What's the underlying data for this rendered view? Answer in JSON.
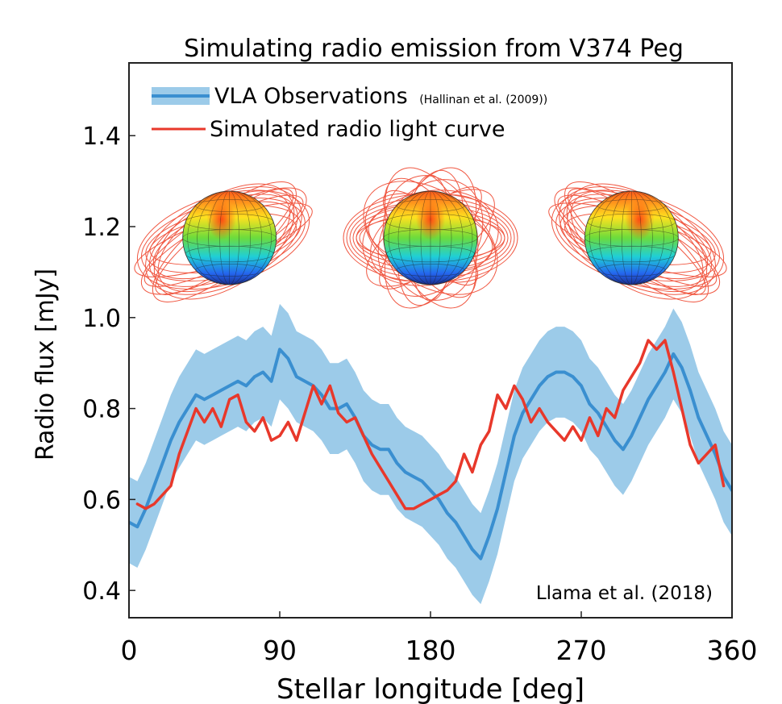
{
  "chart_data": {
    "type": "line",
    "title": "Simulating radio emission from V374 Peg",
    "xlabel": "Stellar longitude [deg]",
    "ylabel": "Radio flux [mJy]",
    "xlim": [
      0,
      360
    ],
    "ylim": [
      0.34,
      1.56
    ],
    "xticks": [
      0,
      90,
      180,
      270,
      360
    ],
    "yticks": [
      0.4,
      0.6,
      0.8,
      1.0,
      1.2,
      1.4
    ],
    "grid": false,
    "legend_position": "top-left",
    "annotation": "Llama et al. (2018)",
    "series": [
      {
        "name": "VLA Observations",
        "name_suffix": "(Hallinan et al. (2009))",
        "kind": "line-with-band",
        "color": "#3a8fd0",
        "band_color": "#9ccbe9",
        "x": [
          0,
          5,
          10,
          15,
          20,
          25,
          30,
          35,
          40,
          45,
          50,
          55,
          60,
          65,
          70,
          75,
          80,
          85,
          90,
          95,
          100,
          105,
          110,
          115,
          120,
          125,
          130,
          135,
          140,
          145,
          150,
          155,
          160,
          165,
          170,
          175,
          180,
          185,
          190,
          195,
          200,
          205,
          210,
          215,
          220,
          225,
          230,
          235,
          240,
          245,
          250,
          255,
          260,
          265,
          270,
          275,
          280,
          285,
          290,
          295,
          300,
          305,
          310,
          315,
          320,
          325,
          330,
          335,
          340,
          345,
          350,
          355,
          360
        ],
        "y": [
          0.55,
          0.54,
          0.58,
          0.63,
          0.68,
          0.73,
          0.77,
          0.8,
          0.83,
          0.82,
          0.83,
          0.84,
          0.85,
          0.86,
          0.85,
          0.87,
          0.88,
          0.86,
          0.93,
          0.91,
          0.87,
          0.86,
          0.85,
          0.83,
          0.8,
          0.8,
          0.81,
          0.78,
          0.74,
          0.72,
          0.71,
          0.71,
          0.68,
          0.66,
          0.65,
          0.64,
          0.62,
          0.6,
          0.57,
          0.55,
          0.52,
          0.49,
          0.47,
          0.52,
          0.58,
          0.66,
          0.74,
          0.79,
          0.82,
          0.85,
          0.87,
          0.88,
          0.88,
          0.87,
          0.85,
          0.81,
          0.79,
          0.76,
          0.73,
          0.71,
          0.74,
          0.78,
          0.82,
          0.85,
          0.88,
          0.92,
          0.89,
          0.84,
          0.78,
          0.74,
          0.7,
          0.65,
          0.62
        ],
        "y_lower": [
          0.46,
          0.45,
          0.49,
          0.54,
          0.59,
          0.64,
          0.67,
          0.7,
          0.73,
          0.72,
          0.73,
          0.74,
          0.75,
          0.76,
          0.75,
          0.77,
          0.78,
          0.76,
          0.82,
          0.8,
          0.77,
          0.76,
          0.75,
          0.73,
          0.7,
          0.7,
          0.71,
          0.68,
          0.64,
          0.62,
          0.61,
          0.61,
          0.58,
          0.56,
          0.55,
          0.54,
          0.52,
          0.5,
          0.47,
          0.45,
          0.42,
          0.39,
          0.37,
          0.42,
          0.48,
          0.56,
          0.64,
          0.69,
          0.72,
          0.75,
          0.77,
          0.78,
          0.78,
          0.77,
          0.75,
          0.71,
          0.69,
          0.66,
          0.63,
          0.61,
          0.64,
          0.68,
          0.72,
          0.75,
          0.78,
          0.82,
          0.79,
          0.74,
          0.68,
          0.64,
          0.6,
          0.55,
          0.52
        ],
        "y_upper": [
          0.65,
          0.64,
          0.68,
          0.73,
          0.78,
          0.83,
          0.87,
          0.9,
          0.93,
          0.92,
          0.93,
          0.94,
          0.95,
          0.96,
          0.95,
          0.97,
          0.98,
          0.96,
          1.03,
          1.01,
          0.97,
          0.96,
          0.95,
          0.93,
          0.9,
          0.9,
          0.91,
          0.88,
          0.84,
          0.82,
          0.81,
          0.81,
          0.78,
          0.76,
          0.75,
          0.74,
          0.72,
          0.7,
          0.67,
          0.65,
          0.62,
          0.59,
          0.57,
          0.62,
          0.68,
          0.76,
          0.84,
          0.89,
          0.92,
          0.95,
          0.97,
          0.98,
          0.98,
          0.97,
          0.95,
          0.91,
          0.89,
          0.86,
          0.83,
          0.81,
          0.84,
          0.88,
          0.92,
          0.95,
          0.98,
          1.02,
          0.99,
          0.94,
          0.88,
          0.84,
          0.8,
          0.75,
          0.72
        ]
      },
      {
        "name": "Simulated radio light curve",
        "kind": "line",
        "color": "#e8382b",
        "x": [
          5,
          10,
          15,
          20,
          25,
          30,
          35,
          40,
          45,
          50,
          55,
          60,
          65,
          70,
          75,
          80,
          85,
          90,
          95,
          100,
          105,
          110,
          115,
          120,
          125,
          130,
          135,
          140,
          145,
          150,
          155,
          160,
          165,
          170,
          175,
          180,
          185,
          190,
          195,
          200,
          205,
          210,
          215,
          220,
          225,
          230,
          235,
          240,
          245,
          250,
          255,
          260,
          265,
          270,
          275,
          280,
          285,
          290,
          295,
          300,
          305,
          310,
          315,
          320,
          325,
          330,
          335,
          340,
          345,
          350,
          355
        ],
        "y": [
          0.59,
          0.58,
          0.59,
          0.61,
          0.63,
          0.7,
          0.75,
          0.8,
          0.77,
          0.8,
          0.76,
          0.82,
          0.83,
          0.77,
          0.75,
          0.78,
          0.73,
          0.74,
          0.77,
          0.73,
          0.79,
          0.85,
          0.81,
          0.85,
          0.79,
          0.77,
          0.78,
          0.74,
          0.7,
          0.67,
          0.64,
          0.61,
          0.58,
          0.58,
          0.59,
          0.6,
          0.61,
          0.62,
          0.64,
          0.7,
          0.66,
          0.72,
          0.75,
          0.83,
          0.8,
          0.85,
          0.82,
          0.77,
          0.8,
          0.77,
          0.75,
          0.73,
          0.76,
          0.73,
          0.78,
          0.74,
          0.8,
          0.78,
          0.84,
          0.87,
          0.9,
          0.95,
          0.93,
          0.95,
          0.88,
          0.8,
          0.72,
          0.68,
          0.7,
          0.72,
          0.63
        ]
      }
    ],
    "inset_images": [
      {
        "depicts": "rotating star model with magnetic field loops",
        "x": 60
      },
      {
        "depicts": "rotating star model with magnetic field loops",
        "x": 180
      },
      {
        "depicts": "rotating star model with magnetic field loops",
        "x": 300
      }
    ]
  }
}
